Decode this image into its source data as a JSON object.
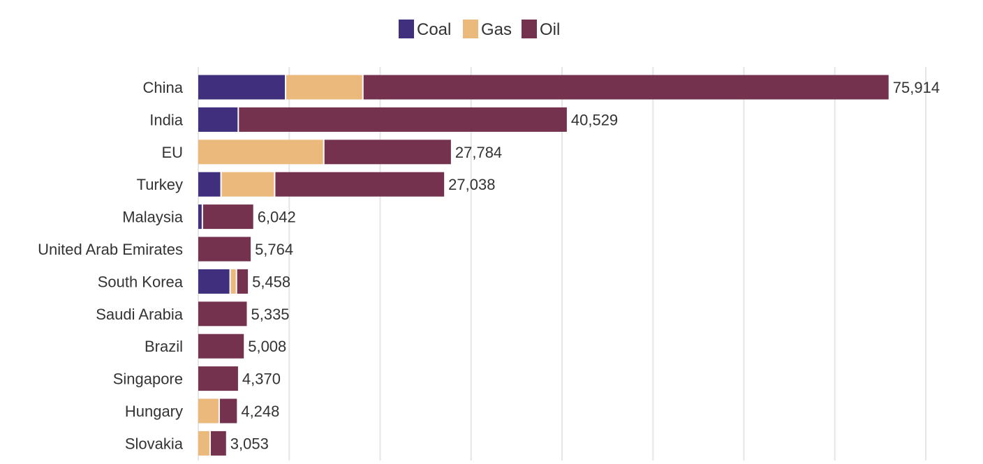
{
  "chart_data": {
    "type": "bar",
    "orientation": "horizontal",
    "stacked": true,
    "legend_position": "top",
    "grid": true,
    "xlim": [
      0,
      80000
    ],
    "title": "",
    "xlabel": "",
    "ylabel": "",
    "categories": [
      "China",
      "India",
      "EU",
      "Turkey",
      "Malaysia",
      "United Arab Emirates",
      "South Korea",
      "Saudi Arabia",
      "Brazil",
      "Singapore",
      "Hungary",
      "Slovakia"
    ],
    "series": [
      {
        "name": "Coal",
        "color": "#3f2f7d",
        "values": [
          9600,
          4400,
          0,
          2500,
          450,
          0,
          3500,
          0,
          0,
          0,
          0,
          0
        ]
      },
      {
        "name": "Gas",
        "color": "#ebb97c",
        "values": [
          8500,
          0,
          13800,
          5900,
          0,
          0,
          700,
          0,
          0,
          0,
          2300,
          1300
        ]
      },
      {
        "name": "Oil",
        "color": "#74324f",
        "values": [
          57814,
          36129,
          13984,
          18638,
          5592,
          5764,
          1258,
          5335,
          5008,
          4370,
          1948,
          1753
        ]
      }
    ],
    "totals": [
      75914,
      40529,
      27784,
      27038,
      6042,
      5764,
      5458,
      5335,
      5008,
      4370,
      4248,
      3053
    ],
    "total_labels": [
      "75,914",
      "40,529",
      "27,784",
      "27,038",
      "6,042",
      "5,764",
      "5,458",
      "5,335",
      "5,008",
      "4,370",
      "4,248",
      "3,053"
    ]
  }
}
